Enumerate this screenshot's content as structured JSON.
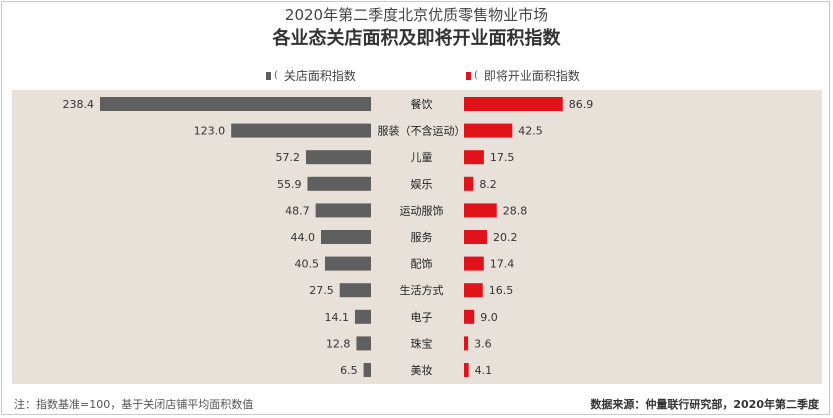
{
  "title_line1": "2020年第二季度北京优质零售物业市场",
  "title_line2": "各业态关店面积及即将开业面积指数",
  "note": "注：指数基准=100，基于关闭店铺平均面积数值",
  "source": "数据来源：仲量联行研究部，2020年第二季度",
  "colors": {
    "closed": "#5f5f5f",
    "opening": "#e0121a",
    "panel": "#e8e1d9"
  },
  "chart_data": {
    "type": "bar",
    "orientation": "horizontal-butterfly",
    "categories": [
      "餐饮",
      "服装（不含运动）",
      "儿童",
      "娱乐",
      "运动服饰",
      "服务",
      "配饰",
      "生活方式",
      "电子",
      "珠宝",
      "美妆"
    ],
    "series": [
      {
        "name": "关店面积指数",
        "values": [
          238.4,
          123.0,
          57.2,
          55.9,
          48.7,
          44.0,
          40.5,
          27.5,
          14.1,
          12.8,
          6.5
        ]
      },
      {
        "name": "即将开业面积指数",
        "values": [
          86.9,
          42.5,
          17.5,
          8.2,
          28.8,
          20.2,
          17.4,
          16.5,
          9.0,
          3.6,
          4.1
        ]
      }
    ],
    "value_labels_closed": [
      "238.4",
      "123.0",
      "57.2",
      "55.9",
      "48.7",
      "44.0",
      "40.5",
      "27.5",
      "14.1",
      "12.8",
      "6.5"
    ],
    "value_labels_opening": [
      "86.9",
      "42.5",
      "17.5",
      "8.2",
      "28.8",
      "20.2",
      "17.4",
      "16.5",
      "9.0",
      "3.6",
      "4.1"
    ],
    "legend_placement": "top",
    "grid": false
  }
}
